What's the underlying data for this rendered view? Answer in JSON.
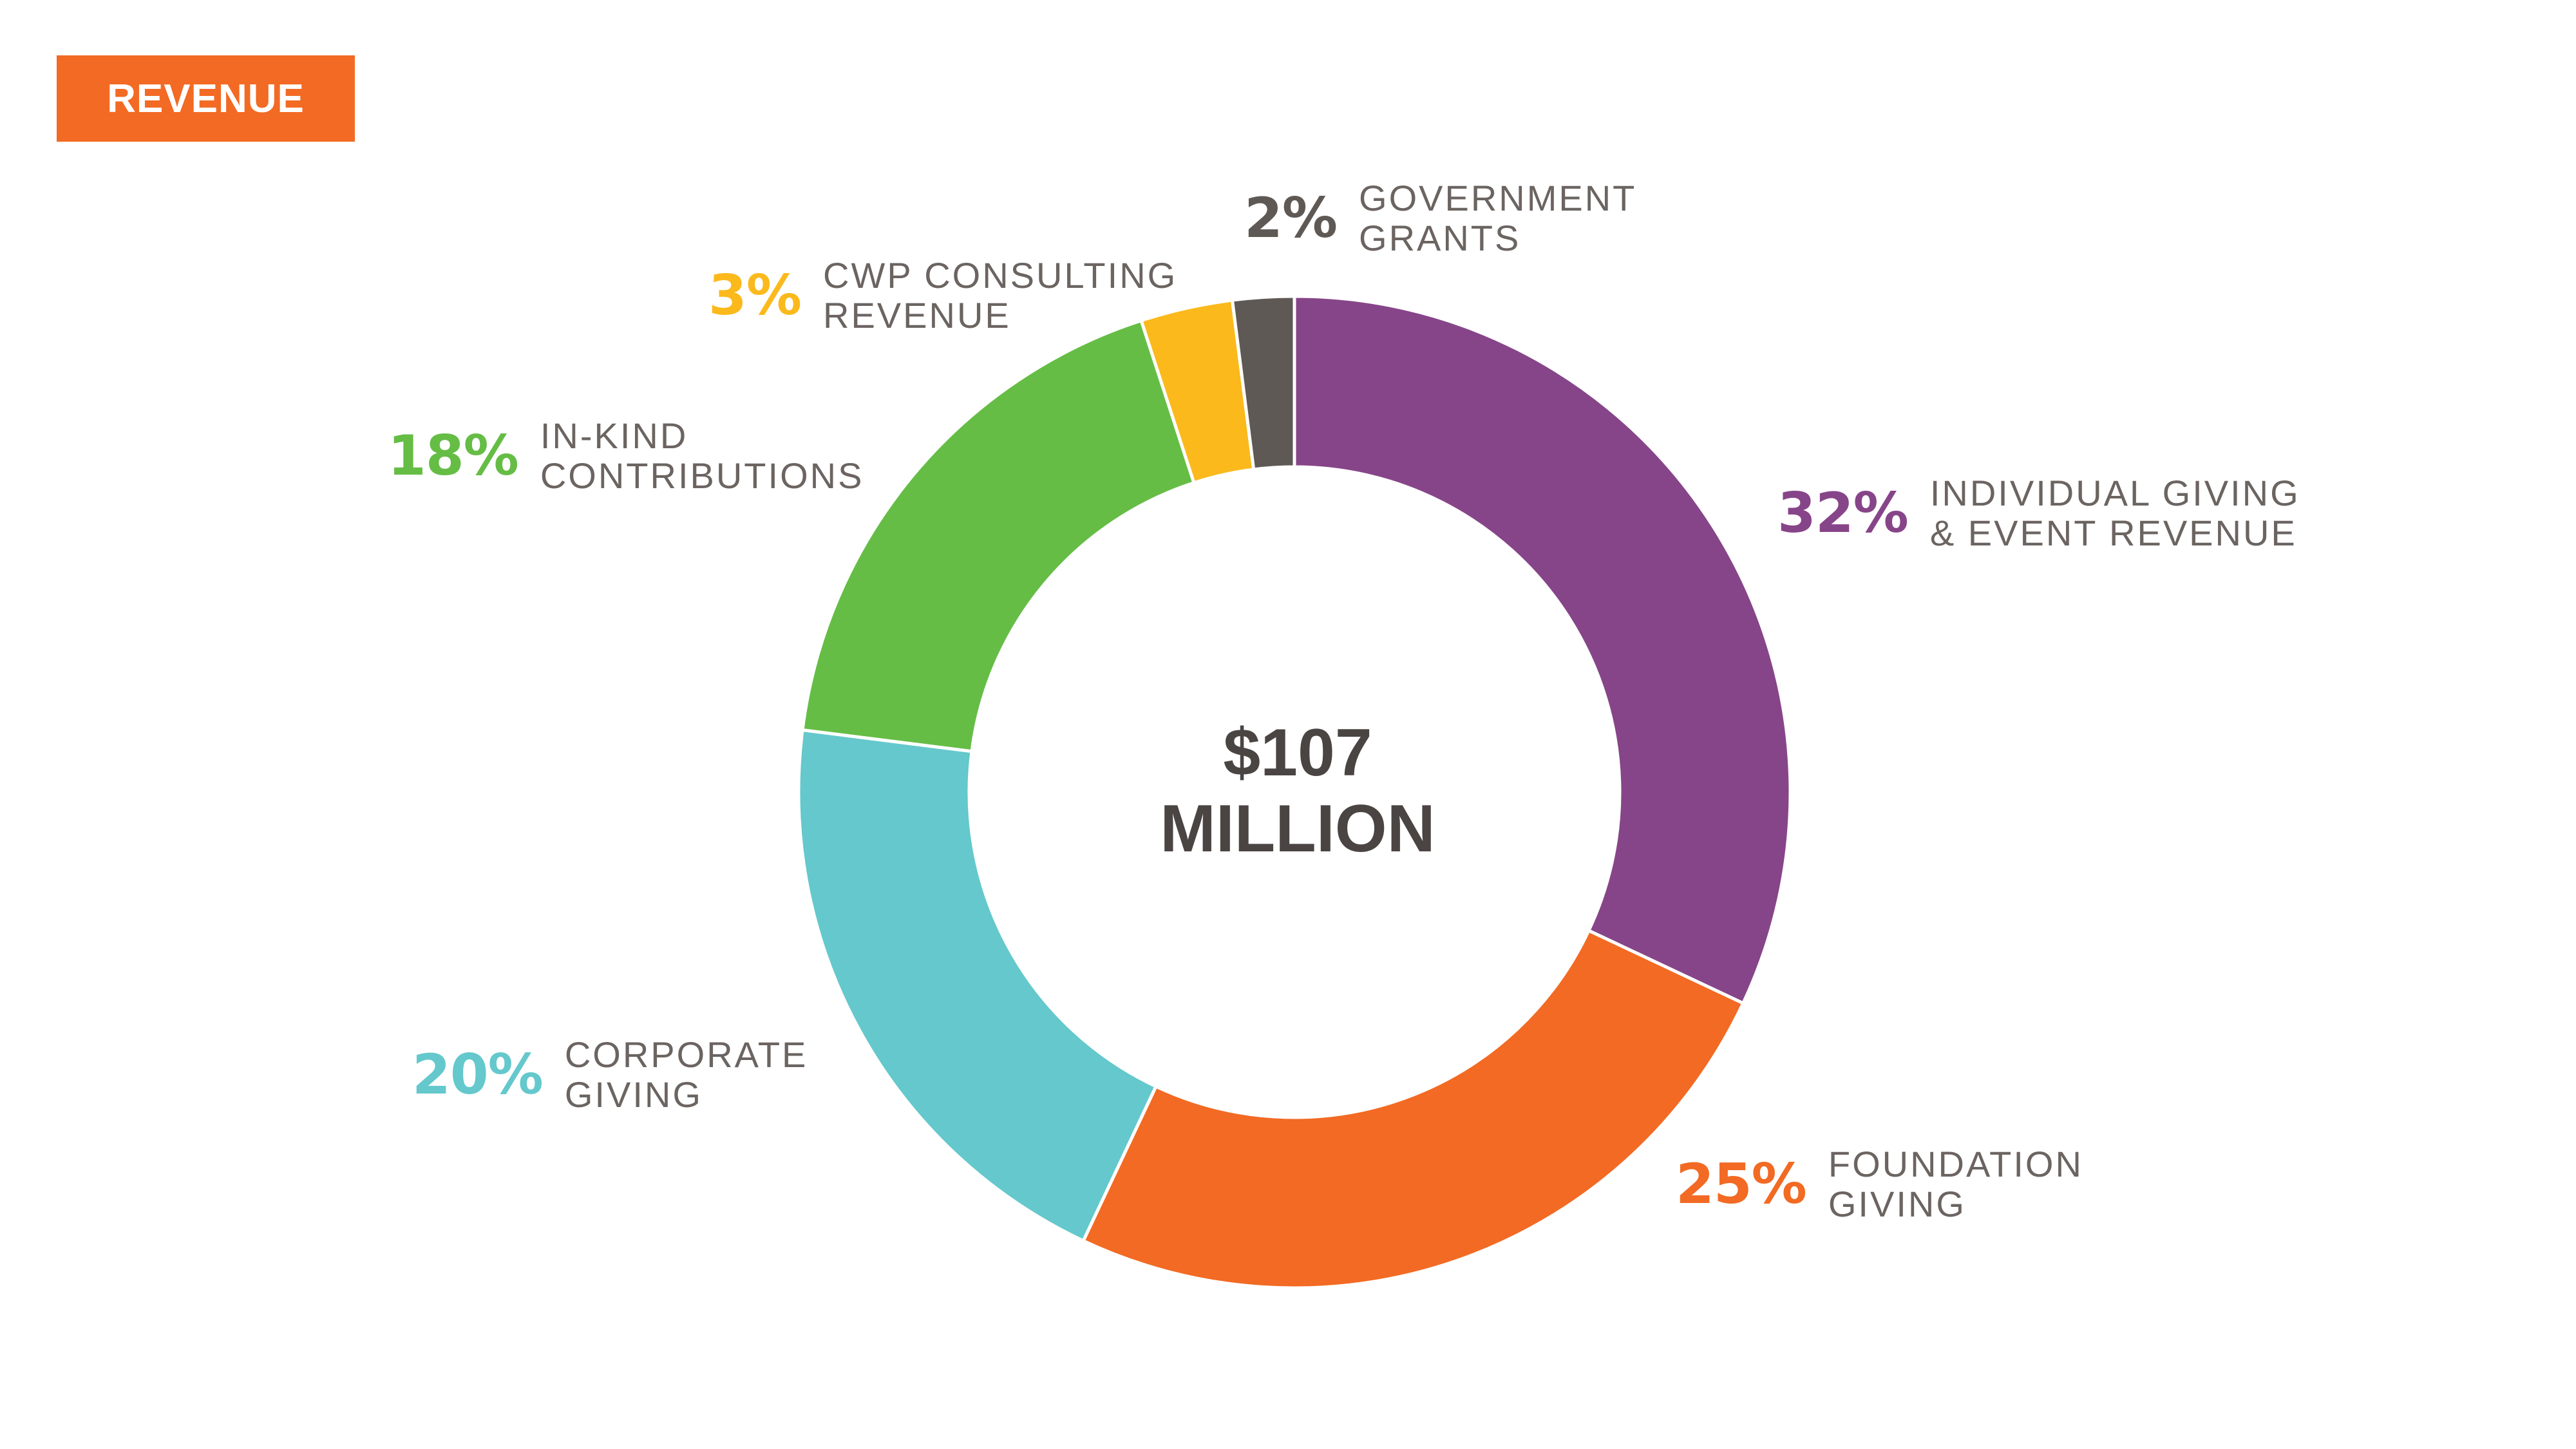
{
  "header": {
    "badge_label": "REVENUE"
  },
  "center": {
    "line1": "$107",
    "line2": "MILLION"
  },
  "chart_data": {
    "type": "pie",
    "donut": true,
    "unit": "%",
    "slices": [
      {
        "name": "INDIVIDUAL GIVING & EVENT REVENUE",
        "pct_label": "32%",
        "name_lines": [
          "INDIVIDUAL GIVING",
          "& EVENT REVENUE"
        ],
        "value": 32,
        "color": "#874589"
      },
      {
        "name": "FOUNDATION GIVING",
        "pct_label": "25%",
        "name_lines": [
          "FOUNDATION",
          "GIVING"
        ],
        "value": 25,
        "color": "#f26a23"
      },
      {
        "name": "CORPORATE GIVING",
        "pct_label": "20%",
        "name_lines": [
          "CORPORATE",
          "GIVING"
        ],
        "value": 20,
        "color": "#64c8cc"
      },
      {
        "name": "IN-KIND CONTRIBUTIONS",
        "pct_label": "18%",
        "name_lines": [
          "IN-KIND",
          "CONTRIBUTIONS"
        ],
        "value": 18,
        "color": "#65bd45"
      },
      {
        "name": "CWP CONSULTING REVENUE",
        "pct_label": "3%",
        "name_lines": [
          "CWP CONSULTING",
          "REVENUE"
        ],
        "value": 3,
        "color": "#fbb91c"
      },
      {
        "name": "GOVERNMENT GRANTS",
        "pct_label": "2%",
        "name_lines": [
          "GOVERNMENT",
          "GRANTS"
        ],
        "value": 2,
        "color": "#5f5955"
      }
    ]
  }
}
